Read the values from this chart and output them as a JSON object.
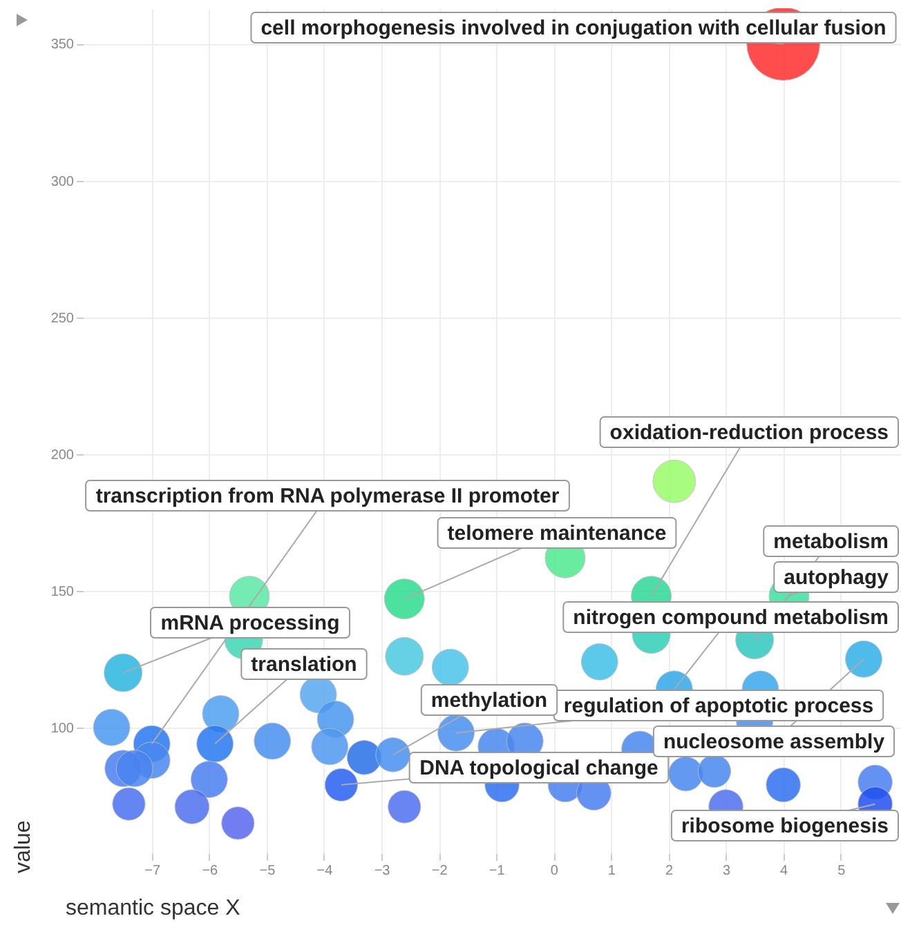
{
  "chart_data": {
    "type": "bubble",
    "xlabel": "semantic space X",
    "ylabel": "value",
    "x": [
      4.0,
      2.1,
      -5.3,
      -5.4,
      -7.5,
      -2.6,
      -2.6,
      -1.8,
      0.2,
      1.7,
      4.1,
      1.7,
      3.5,
      0.8,
      5.4,
      2.1,
      3.6,
      3.5,
      -7.7,
      -7.0,
      -7.0,
      -7.5,
      -7.3,
      -5.8,
      -5.9,
      -6.0,
      -7.4,
      -6.3,
      -5.5,
      -4.9,
      -4.1,
      -3.8,
      -3.9,
      -3.3,
      -2.8,
      -3.7,
      -2.6,
      -1.7,
      -1.0,
      -0.5,
      -0.9,
      0.2,
      0.7,
      1.5,
      2.3,
      2.8,
      3.0,
      4.0,
      5.6,
      5.6
    ],
    "values": [
      350,
      190,
      148,
      132,
      120,
      147,
      126,
      122,
      162,
      148,
      148,
      134,
      132,
      124,
      125,
      114,
      114,
      102,
      100,
      94,
      88,
      85,
      85,
      105,
      94,
      81,
      72,
      71,
      65,
      95,
      112,
      103,
      93,
      89,
      90,
      79,
      71,
      98,
      93,
      95,
      79,
      79,
      76,
      92,
      83,
      84,
      71,
      79,
      80,
      72
    ],
    "sizes": [
      1,
      0.34,
      0.3,
      0.27,
      0.27,
      0.3,
      0.27,
      0.25,
      0.3,
      0.3,
      0.3,
      0.27,
      0.27,
      0.25,
      0.25,
      0.25,
      0.25,
      0.25,
      0.25,
      0.25,
      0.25,
      0.25,
      0.25,
      0.25,
      0.25,
      0.25,
      0.2,
      0.22,
      0.2,
      0.25,
      0.25,
      0.25,
      0.25,
      0.22,
      0.22,
      0.2,
      0.2,
      0.25,
      0.25,
      0.25,
      0.22,
      0.22,
      0.22,
      0.25,
      0.22,
      0.2,
      0.22,
      0.22,
      0.22,
      0.22
    ],
    "colors": [
      "#ff2d2d",
      "#9afc6a",
      "#5ee8a8",
      "#3ed6b4",
      "#2ab6e0",
      "#2edc90",
      "#4cc8e0",
      "#4cc4ea",
      "#50e890",
      "#2ed898",
      "#3ee0a0",
      "#30d0b8",
      "#30c8c0",
      "#40c0e8",
      "#30b0e8",
      "#30a8e8",
      "#3aa8ec",
      "#4890f0",
      "#4a98f0",
      "#2878f0",
      "#4a88f0",
      "#4a80f0",
      "#4a84f0",
      "#50a0f0",
      "#2878f0",
      "#4a80f0",
      "#4a70f0",
      "#5070f0",
      "#5868f0",
      "#4a90f0",
      "#58a8f0",
      "#4898f0",
      "#5098f0",
      "#2870e8",
      "#4890f0",
      "#2860f0",
      "#5070f0",
      "#4a90f0",
      "#4a88f0",
      "#4a88f0",
      "#3070f0",
      "#4a80f0",
      "#4a80f0",
      "#4a88f0",
      "#4a88f0",
      "#4a88f0",
      "#5070f0",
      "#3070f0",
      "#4a80f0",
      "#2050f0"
    ],
    "xlim": [
      -8.2,
      6.05
    ],
    "ylim": [
      54,
      363
    ],
    "xticks": [
      -7,
      -6,
      -5,
      -4,
      -3,
      -2,
      -1,
      0,
      1,
      2,
      3,
      4,
      5
    ],
    "yticks": [
      100,
      150,
      200,
      250,
      300,
      350
    ],
    "grid": true,
    "annotations": [
      {
        "text": "cell morphogenesis involved in conjugation with cellular fusion",
        "x": 4.0,
        "y": 350
      },
      {
        "text": "oxidation-reduction process",
        "x": 1.7,
        "y": 148
      },
      {
        "text": "transcription from RNA polymerase II promoter",
        "x": -7.0,
        "y": 94
      },
      {
        "text": "mRNA processing",
        "x": -7.5,
        "y": 120
      },
      {
        "text": "telomere maintenance",
        "x": -2.6,
        "y": 147
      },
      {
        "text": "metabolism",
        "x": 3.5,
        "y": 132
      },
      {
        "text": "autophagy",
        "x": 4.1,
        "y": 148
      },
      {
        "text": "nitrogen compound metabolism",
        "x": 2.1,
        "y": 114
      },
      {
        "text": "regulation of apoptotic process",
        "x": -1.7,
        "y": 98
      },
      {
        "text": "methylation",
        "x": -2.8,
        "y": 90
      },
      {
        "text": "translation",
        "x": -5.9,
        "y": 94
      },
      {
        "text": "DNA topological change",
        "x": -3.7,
        "y": 79
      },
      {
        "text": "nucleosome assembly",
        "x": 5.4,
        "y": 125
      },
      {
        "text": "ribosome biogenesis",
        "x": 5.6,
        "y": 72
      }
    ]
  }
}
